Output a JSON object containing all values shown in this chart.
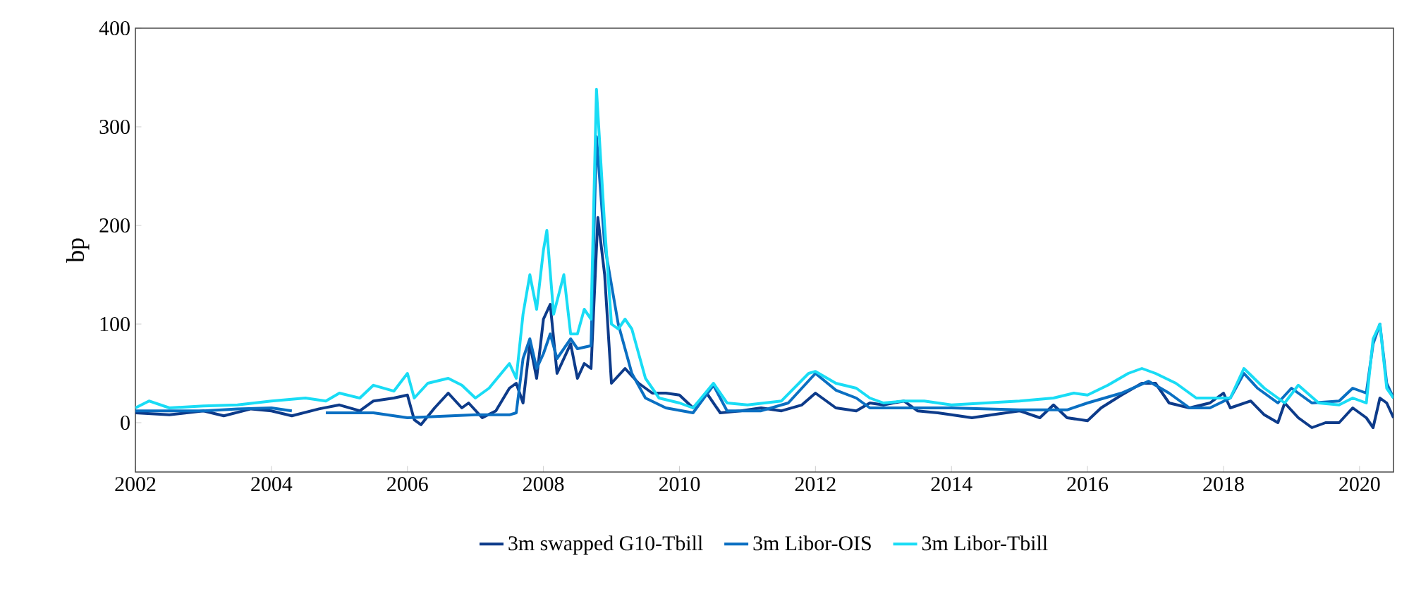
{
  "chart_data": {
    "type": "line",
    "ylabel": "bp",
    "xlim": [
      2002,
      2020.5
    ],
    "xticks": [
      2002,
      2004,
      2006,
      2008,
      2010,
      2012,
      2014,
      2016,
      2018,
      2020
    ],
    "ylim": [
      -50,
      400
    ],
    "yticks": [
      0,
      100,
      200,
      300,
      400
    ],
    "grid": false,
    "legend": "bottom",
    "marker": "none",
    "line_style": "solid",
    "series": [
      {
        "name": "3m swapped G10-Tbill",
        "color": "#0d3b8a",
        "x": [
          2002.0,
          2002.5,
          2003.0,
          2003.3,
          2003.7,
          2004.0,
          2004.3,
          2004.7,
          2005.0,
          2005.3,
          2005.5,
          2005.8,
          2006.0,
          2006.1,
          2006.2,
          2006.4,
          2006.6,
          2006.8,
          2006.9,
          2007.1,
          2007.3,
          2007.5,
          2007.6,
          2007.7,
          2007.8,
          2007.9,
          2008.0,
          2008.1,
          2008.2,
          2008.4,
          2008.5,
          2008.6,
          2008.7,
          2008.8,
          2008.9,
          2009.0,
          2009.2,
          2009.4,
          2009.6,
          2009.8,
          2010.0,
          2010.2,
          2010.4,
          2010.6,
          2010.9,
          2011.2,
          2011.5,
          2011.8,
          2012.0,
          2012.3,
          2012.6,
          2012.8,
          2013.0,
          2013.3,
          2013.5,
          2013.8,
          2014.0,
          2014.3,
          2014.6,
          2015.0,
          2015.3,
          2015.5,
          2015.7,
          2016.0,
          2016.2,
          2016.5,
          2016.8,
          2017.0,
          2017.2,
          2017.5,
          2017.8,
          2018.0,
          2018.1,
          2018.4,
          2018.6,
          2018.8,
          2018.9,
          2019.1,
          2019.3,
          2019.5,
          2019.7,
          2019.9,
          2020.1,
          2020.2,
          2020.3,
          2020.4,
          2020.5
        ],
        "values": [
          10,
          8,
          12,
          7,
          14,
          12,
          7,
          14,
          18,
          12,
          22,
          25,
          28,
          3,
          -2,
          15,
          30,
          15,
          20,
          5,
          12,
          35,
          40,
          20,
          80,
          45,
          105,
          120,
          50,
          80,
          45,
          60,
          55,
          208,
          150,
          40,
          55,
          40,
          30,
          30,
          28,
          15,
          30,
          10,
          12,
          15,
          12,
          18,
          30,
          15,
          12,
          20,
          18,
          22,
          12,
          10,
          8,
          5,
          8,
          12,
          5,
          18,
          5,
          2,
          15,
          28,
          40,
          40,
          20,
          15,
          20,
          30,
          15,
          22,
          8,
          0,
          20,
          5,
          -5,
          0,
          0,
          15,
          5,
          -5,
          25,
          20,
          5
        ]
      },
      {
        "name": "3m Libor-OIS",
        "color": "#0a6fc2",
        "x": [
          2002.0,
          2002.5,
          2003.0,
          2003.5,
          2004.0,
          2004.3,
          2004.5,
          2004.8,
          2005.5,
          2006.0,
          2007.0,
          2007.5,
          2007.6,
          2007.7,
          2007.8,
          2007.9,
          2008.0,
          2008.1,
          2008.2,
          2008.4,
          2008.5,
          2008.7,
          2008.78,
          2008.9,
          2009.1,
          2009.3,
          2009.5,
          2009.8,
          2010.2,
          2010.5,
          2010.7,
          2011.2,
          2011.6,
          2012.0,
          2012.3,
          2012.6,
          2012.8,
          2013.2,
          2014.0,
          2015.0,
          2015.7,
          2016.0,
          2016.5,
          2016.9,
          2017.2,
          2017.5,
          2017.8,
          2018.1,
          2018.3,
          2018.5,
          2018.8,
          2019.0,
          2019.3,
          2019.7,
          2019.9,
          2020.1,
          2020.2,
          2020.3,
          2020.4,
          2020.5
        ],
        "values": [
          12,
          12,
          12,
          14,
          15,
          12,
          null,
          10,
          10,
          5,
          8,
          8,
          10,
          65,
          85,
          55,
          70,
          90,
          65,
          85,
          75,
          78,
          290,
          180,
          100,
          50,
          25,
          15,
          10,
          38,
          12,
          12,
          20,
          50,
          33,
          25,
          15,
          15,
          15,
          13,
          13,
          20,
          30,
          42,
          30,
          15,
          15,
          25,
          50,
          35,
          20,
          35,
          20,
          22,
          35,
          30,
          80,
          100,
          40,
          25
        ]
      },
      {
        "name": "3m Libor-Tbill",
        "color": "#19dcf5",
        "x": [
          2002.0,
          2002.2,
          2002.5,
          2003.0,
          2003.5,
          2004.0,
          2004.5,
          2004.8,
          2005.0,
          2005.3,
          2005.5,
          2005.8,
          2006.0,
          2006.1,
          2006.3,
          2006.6,
          2006.8,
          2007.0,
          2007.2,
          2007.5,
          2007.6,
          2007.7,
          2007.8,
          2007.9,
          2008.0,
          2008.05,
          2008.15,
          2008.3,
          2008.4,
          2008.5,
          2008.6,
          2008.7,
          2008.78,
          2008.9,
          2009.0,
          2009.1,
          2009.2,
          2009.3,
          2009.5,
          2009.7,
          2010.0,
          2010.2,
          2010.5,
          2010.7,
          2011.0,
          2011.5,
          2011.9,
          2012.0,
          2012.3,
          2012.6,
          2012.8,
          2013.0,
          2013.3,
          2013.6,
          2014.0,
          2014.5,
          2015.0,
          2015.5,
          2015.8,
          2016.0,
          2016.3,
          2016.6,
          2016.8,
          2017.0,
          2017.3,
          2017.6,
          2017.9,
          2018.1,
          2018.3,
          2018.6,
          2018.9,
          2019.1,
          2019.4,
          2019.7,
          2019.9,
          2020.1,
          2020.2,
          2020.3,
          2020.4,
          2020.5
        ],
        "values": [
          15,
          22,
          15,
          17,
          18,
          22,
          25,
          22,
          30,
          25,
          38,
          32,
          50,
          25,
          40,
          45,
          38,
          25,
          35,
          60,
          45,
          110,
          150,
          115,
          175,
          195,
          110,
          150,
          90,
          90,
          115,
          105,
          338,
          200,
          100,
          95,
          105,
          95,
          45,
          25,
          20,
          15,
          40,
          20,
          18,
          22,
          50,
          52,
          40,
          35,
          25,
          20,
          22,
          22,
          18,
          20,
          22,
          25,
          30,
          28,
          38,
          50,
          55,
          50,
          40,
          25,
          25,
          25,
          55,
          35,
          20,
          38,
          20,
          18,
          25,
          20,
          85,
          100,
          35,
          25
        ]
      }
    ]
  }
}
